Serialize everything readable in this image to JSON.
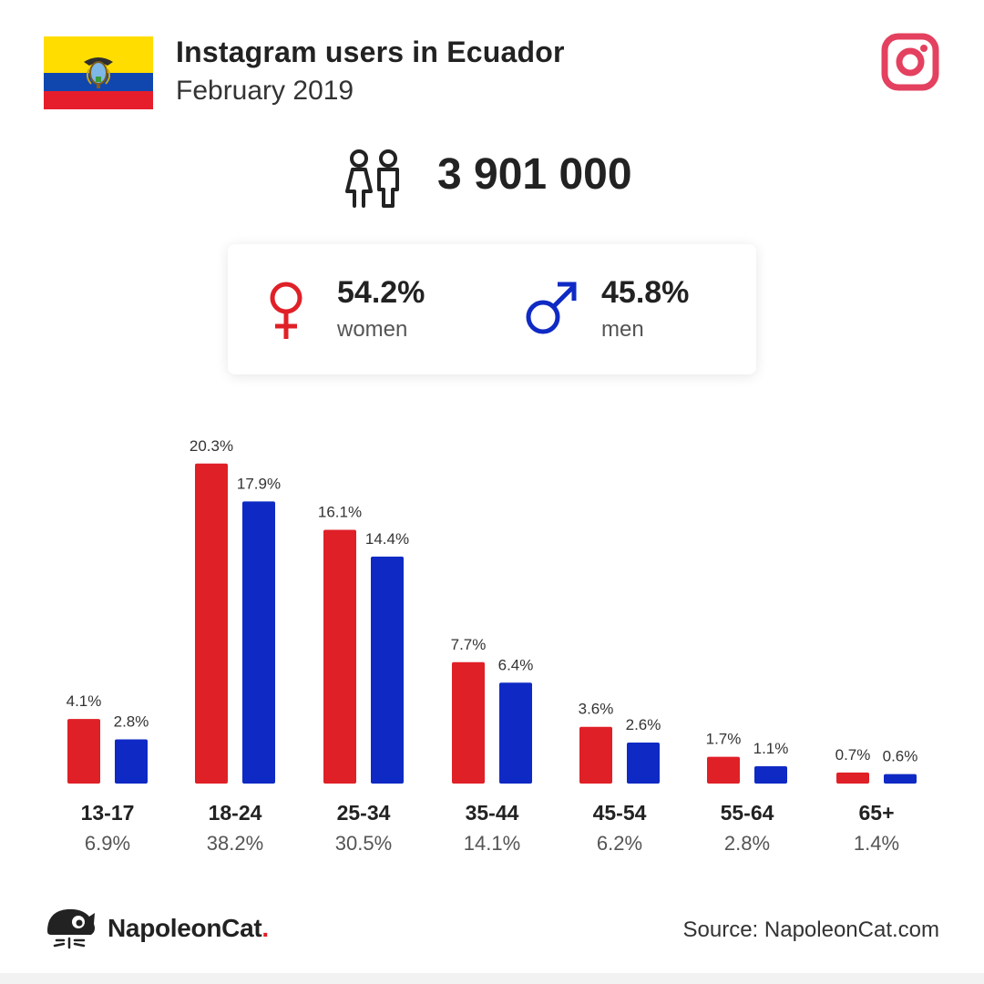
{
  "header": {
    "title": "Instagram users in Ecuador",
    "subtitle": "February 2019",
    "flag_icon": "ecuador-flag",
    "platform_icon": "instagram-icon"
  },
  "summary": {
    "total_users": "3 901 000",
    "people_icon": "people-icon"
  },
  "gender": {
    "women": {
      "pct": "54.2%",
      "label": "women",
      "icon": "female-icon",
      "color": "#e02027"
    },
    "men": {
      "pct": "45.8%",
      "label": "men",
      "icon": "male-icon",
      "color": "#0f2ac4"
    }
  },
  "chart_data": {
    "type": "bar",
    "categories": [
      "13-17",
      "18-24",
      "25-34",
      "35-44",
      "45-54",
      "55-64",
      "65+"
    ],
    "category_totals": [
      "6.9%",
      "38.2%",
      "30.5%",
      "14.1%",
      "6.2%",
      "2.8%",
      "1.4%"
    ],
    "series": [
      {
        "values": [
          4.1,
          20.3,
          16.1,
          7.7,
          3.6,
          1.7,
          0.7
        ],
        "labels": [
          "4.1%",
          "20.3%",
          "16.1%",
          "7.7%",
          "3.6%",
          "1.7%",
          "0.7%"
        ],
        "color": "#e02027"
      },
      {
        "values": [
          2.8,
          17.9,
          14.4,
          6.4,
          2.6,
          1.1,
          0.6
        ],
        "labels": [
          "2.8%",
          "17.9%",
          "14.4%",
          "6.4%",
          "2.6%",
          "1.1%",
          "0.6%"
        ],
        "color": "#0f2ac4"
      }
    ],
    "title": "",
    "xlabel": "",
    "ylabel": "",
    "grid": false,
    "axes_visible": false
  },
  "footer": {
    "brand_name": "NapoleonCat",
    "brand_dot": ".",
    "brand_icon": "napoleoncat-logo-icon",
    "source": "Source: NapoleonCat.com"
  },
  "colors": {
    "accent_women": "#e02027",
    "accent_men": "#0f2ac4",
    "instagram": "#e4405f",
    "text": "#222222"
  }
}
